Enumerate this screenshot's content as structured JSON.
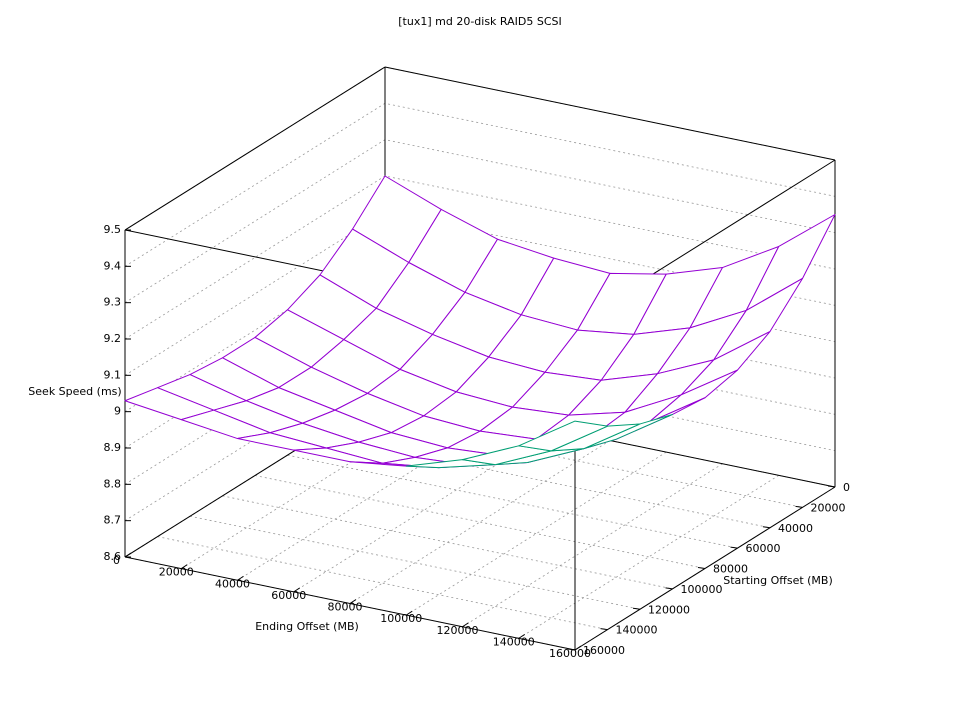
{
  "chart_data": {
    "type": "surface",
    "title": "[tux1] md 20-disk RAID5 SCSI",
    "x_label": "Ending Offset (MB)",
    "y_label": "Starting Offset (MB)",
    "z_label": "Seek Speed (ms)",
    "x": [
      0,
      20000,
      40000,
      60000,
      80000,
      100000,
      120000,
      140000,
      160000
    ],
    "y": [
      0,
      20000,
      40000,
      60000,
      80000,
      100000,
      120000,
      140000,
      160000
    ],
    "z": [
      [
        9.2,
        9.14,
        9.09,
        9.07,
        9.06,
        9.09,
        9.14,
        9.23,
        9.35
      ],
      [
        9.11,
        9.05,
        9.0,
        8.97,
        8.96,
        8.98,
        9.03,
        9.11,
        9.23
      ],
      [
        9.04,
        8.98,
        8.94,
        8.91,
        8.9,
        8.91,
        8.96,
        9.03,
        9.14
      ],
      [
        9.0,
        8.95,
        8.9,
        8.87,
        8.86,
        8.87,
        8.91,
        8.99,
        9.09
      ],
      [
        8.98,
        8.93,
        8.89,
        8.86,
        8.85,
        8.86,
        8.9,
        8.97,
        9.07
      ],
      [
        8.98,
        8.93,
        8.9,
        8.87,
        8.86,
        8.87,
        8.91,
        8.98,
        9.08
      ],
      [
        8.99,
        8.95,
        8.92,
        8.9,
        8.89,
        8.9,
        8.94,
        9.01,
        9.11
      ],
      [
        9.01,
        8.98,
        8.95,
        8.94,
        8.93,
        8.95,
        8.99,
        9.06,
        9.16
      ],
      [
        9.03,
        9.01,
        8.99,
        8.99,
        8.99,
        9.01,
        9.06,
        9.13,
        9.23
      ]
    ],
    "xlim": [
      0,
      160000
    ],
    "ylim": [
      0,
      160000
    ],
    "zlim": [
      8.6,
      9.5
    ],
    "xticks": [
      0,
      20000,
      40000,
      60000,
      80000,
      100000,
      120000,
      140000,
      160000
    ],
    "yticks": [
      0,
      20000,
      40000,
      60000,
      80000,
      100000,
      120000,
      140000,
      160000
    ],
    "zticks": [
      8.6,
      8.7,
      8.8,
      8.9,
      9,
      9.1,
      9.2,
      9.3,
      9.4,
      9.5
    ],
    "grid": true,
    "color": "#9400d3",
    "underside_color": "#009e73"
  }
}
